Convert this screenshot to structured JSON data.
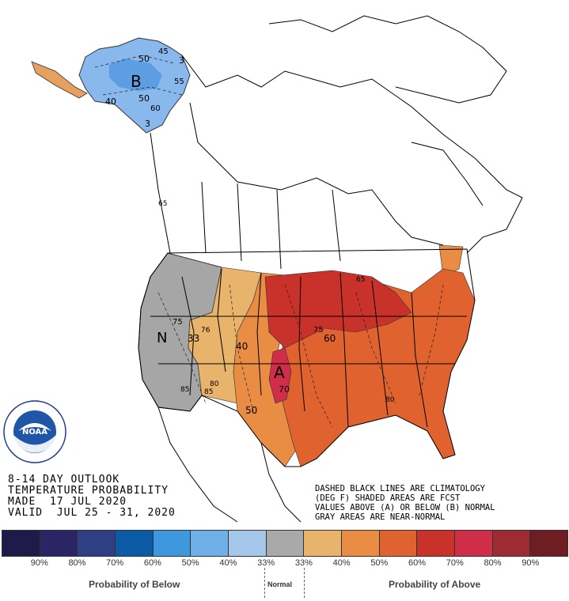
{
  "outlook": {
    "line1": "8-14 DAY OUTLOOK",
    "line2": "TEMPERATURE PROBABILITY",
    "line3": "MADE  17 JUL 2020",
    "line4": "VALID  JUL 25 - 31, 2020"
  },
  "notes": {
    "line1": "DASHED BLACK LINES ARE CLIMATOLOGY",
    "line2": "(DEG F) SHADED AREAS ARE FCST",
    "line3": "VALUES ABOVE (A) OR BELOW (B) NORMAL",
    "line4": "GRAY AREAS ARE NEAR-NORMAL"
  },
  "map_labels": {
    "below_center": "B",
    "above_center": "A",
    "normal_center": "N",
    "contours": [
      "50",
      "45",
      "55",
      "40",
      "50",
      "60",
      "3",
      "3",
      "65",
      "75",
      "33",
      "76",
      "40",
      "80",
      "85",
      "85",
      "65",
      "75",
      "60",
      "70",
      "50",
      "80"
    ]
  },
  "logo": {
    "text": "NOAA",
    "ring_text": "U.S. DEPARTMENT OF COMMERCE NATIONAL OCEANIC AND ATMOSPHERIC ADMINISTRATION"
  },
  "scale": {
    "colors": [
      "#1e1a4a",
      "#2b2566",
      "#2f3f84",
      "#0a5aa6",
      "#3d98dd",
      "#6fb0e8",
      "#a4c6e8",
      "#a9a9a9",
      "#e8b36a",
      "#e98d45",
      "#e0622e",
      "#c8322a",
      "#d02e48",
      "#9c2b33",
      "#6e1e22"
    ],
    "tick_labels": [
      "90%",
      "80%",
      "70%",
      "60%",
      "50%",
      "40%",
      "33%",
      "33%",
      "40%",
      "50%",
      "60%",
      "70%",
      "80%",
      "90%"
    ],
    "below_label": "Probability of Below",
    "normal_label": "Normal",
    "above_label": "Probability of Above"
  }
}
